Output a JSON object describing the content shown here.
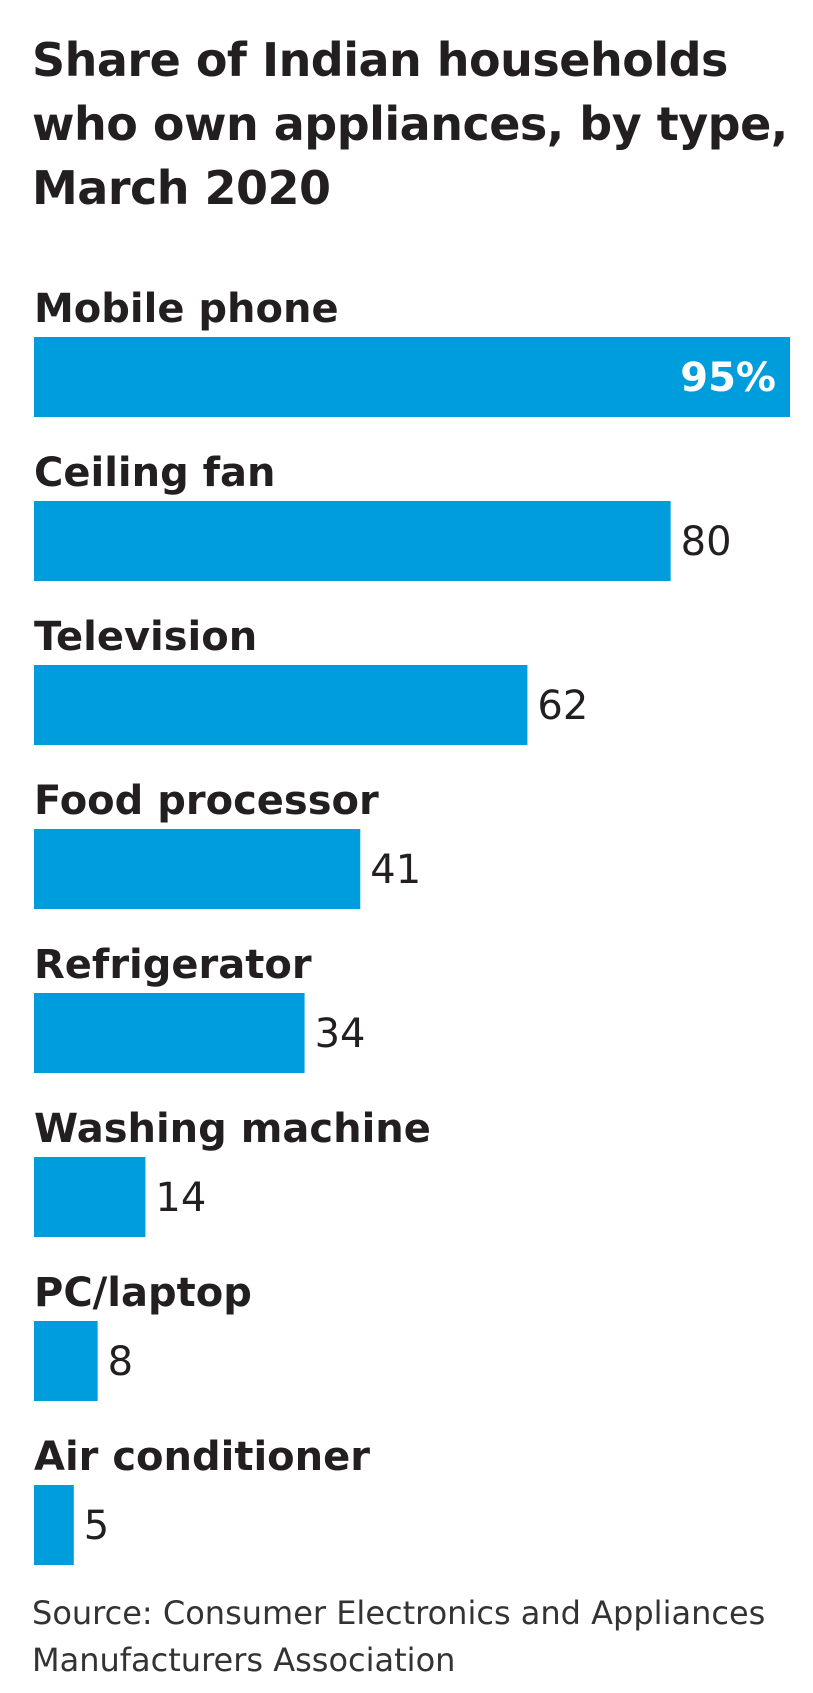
{
  "chart_data": {
    "type": "bar",
    "orientation": "horizontal",
    "title": "Share of Indian households who own appliances, by type, March 2020",
    "categories": [
      "Mobile phone",
      "Ceiling fan",
      "Television",
      "Food processor",
      "Refrigerator",
      "Washing machine",
      "PC/laptop",
      "Air conditioner"
    ],
    "values": [
      95,
      80,
      62,
      41,
      34,
      14,
      8,
      5
    ],
    "value_labels": [
      "95%",
      "80",
      "62",
      "41",
      "34",
      "14",
      "8",
      "5"
    ],
    "xlim": [
      0,
      95
    ],
    "bar_color": "#009ddc",
    "grid": false,
    "legend": "none",
    "source": "Source: Consumer Electronics and Appliances Manufacturers Association"
  }
}
